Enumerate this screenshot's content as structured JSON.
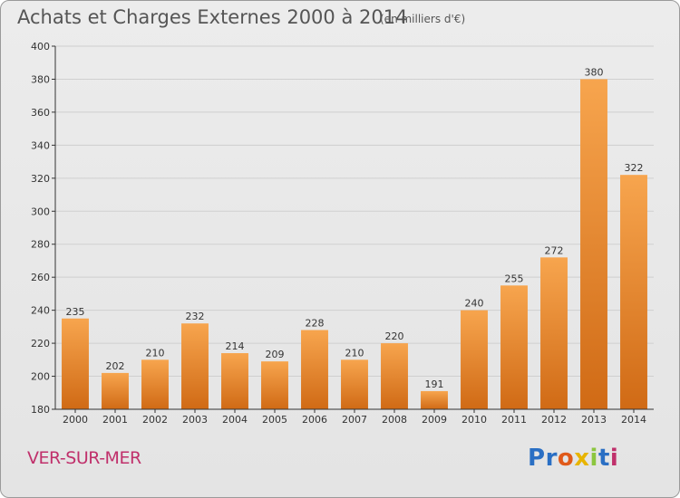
{
  "header": {
    "title": "Achats et Charges Externes 2000 à 2014",
    "subtitle": "(en milliers d'€)"
  },
  "footer": {
    "place": "VER-SUR-MER",
    "logo": {
      "text": "Proxiti",
      "colors": [
        "#2a6fc4",
        "#2a6fc4",
        "#e05a1a",
        "#e8b400",
        "#8cc63f",
        "#2a6fc4",
        "#c0306b"
      ]
    }
  },
  "colors": {
    "bar_top": "#f7a54e",
    "bar_bottom": "#d06a15",
    "axis": "#333333",
    "grid": "#cfcfcf"
  },
  "chart_data": {
    "type": "bar",
    "title": "Achats et Charges Externes 2000 à 2014",
    "subtitle": "(en milliers d'€)",
    "categories": [
      "2000",
      "2001",
      "2002",
      "2003",
      "2004",
      "2005",
      "2006",
      "2007",
      "2008",
      "2009",
      "2010",
      "2011",
      "2012",
      "2013",
      "2014"
    ],
    "values": [
      235,
      202,
      210,
      232,
      214,
      209,
      228,
      210,
      220,
      191,
      240,
      255,
      272,
      380,
      322
    ],
    "ylim": [
      180,
      400
    ],
    "yticks": [
      180,
      200,
      220,
      240,
      260,
      280,
      300,
      320,
      340,
      360,
      380,
      400
    ],
    "grid": true,
    "data_labels": true
  }
}
